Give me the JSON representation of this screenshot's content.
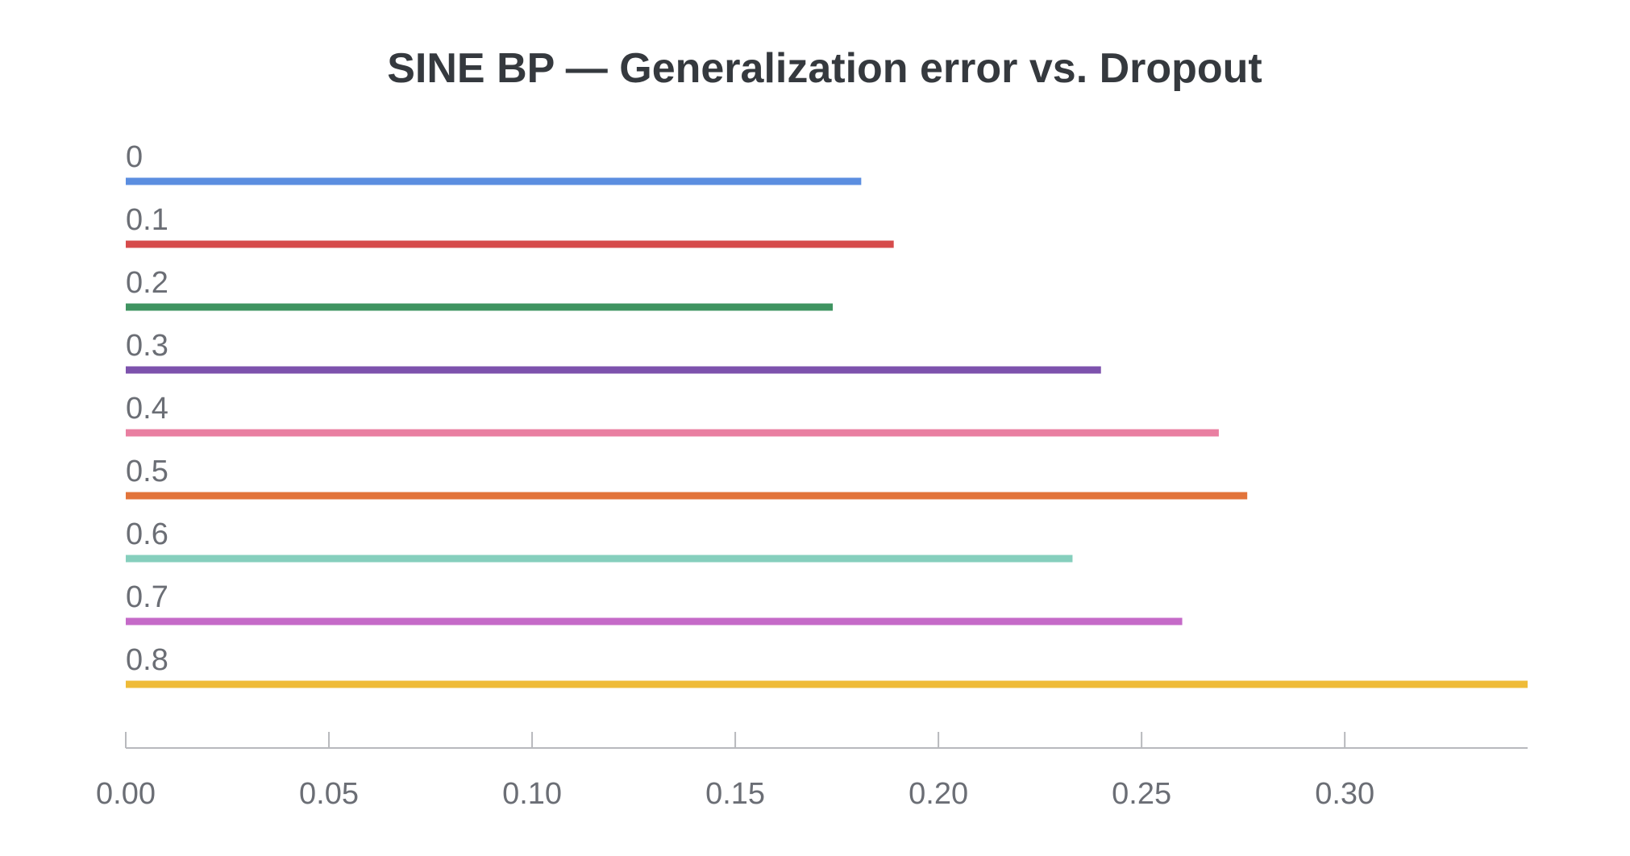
{
  "chart_data": {
    "type": "bar",
    "orientation": "horizontal",
    "title": "SINE BP — Generalization error vs. Dropout",
    "xlabel": "",
    "ylabel": "",
    "xlim": [
      0,
      0.345
    ],
    "grid": false,
    "legend": "none",
    "categories": [
      "0",
      "0.1",
      "0.2",
      "0.3",
      "0.4",
      "0.5",
      "0.6",
      "0.7",
      "0.8"
    ],
    "values": [
      0.181,
      0.189,
      0.174,
      0.24,
      0.269,
      0.276,
      0.233,
      0.26,
      0.345
    ],
    "colors": [
      "#5b8ee0",
      "#d64b4b",
      "#3f9461",
      "#7d52ad",
      "#e97fa1",
      "#e2743b",
      "#86cfbd",
      "#c56ac8",
      "#efbb38"
    ],
    "x_ticks": [
      {
        "value": 0.0,
        "label": "0.00"
      },
      {
        "value": 0.05,
        "label": "0.05"
      },
      {
        "value": 0.1,
        "label": "0.10"
      },
      {
        "value": 0.15,
        "label": "0.15"
      },
      {
        "value": 0.2,
        "label": "0.20"
      },
      {
        "value": 0.25,
        "label": "0.25"
      },
      {
        "value": 0.3,
        "label": "0.30"
      }
    ]
  },
  "style": {
    "axis_color": "#b8b9bd",
    "text_color": "#6b6e75",
    "title_color": "#35393e",
    "background": "#ffffff"
  }
}
